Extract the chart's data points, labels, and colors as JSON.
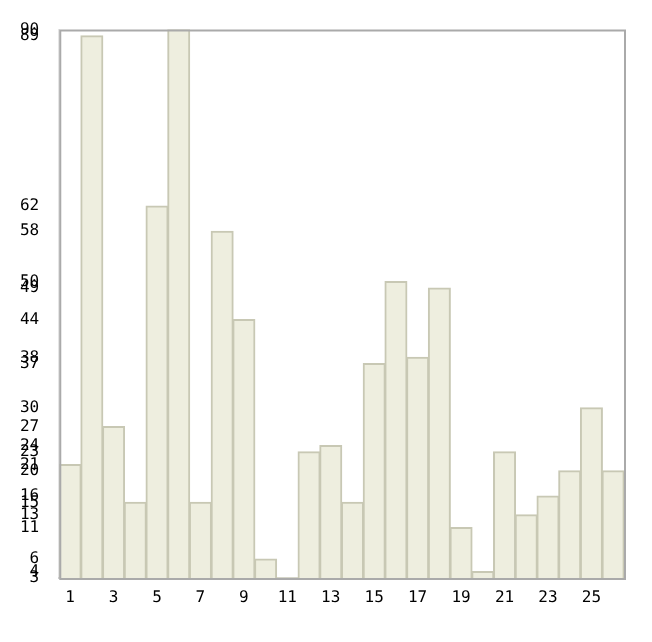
{
  "chart_data": {
    "type": "bar",
    "categories": [
      "1",
      null,
      "3",
      null,
      "5",
      null,
      "7",
      null,
      "9",
      null,
      "11",
      null,
      "13",
      null,
      "15",
      null,
      "17",
      null,
      "19",
      null,
      "21",
      null,
      "23",
      null,
      "25",
      null
    ],
    "values": [
      21,
      89,
      27,
      15,
      62,
      90,
      15,
      58,
      44,
      6,
      3,
      23,
      24,
      15,
      37,
      50,
      38,
      49,
      11,
      4,
      23,
      13,
      16,
      20,
      30,
      20
    ],
    "color": "#eeeedf",
    "ylim": [
      3,
      90
    ],
    "yticks": [
      3,
      4,
      6,
      11,
      13,
      15,
      16,
      20,
      21,
      23,
      24,
      27,
      30,
      37,
      38,
      44,
      49,
      50,
      58,
      62,
      89,
      90
    ],
    "grid": false,
    "legend": false
  }
}
